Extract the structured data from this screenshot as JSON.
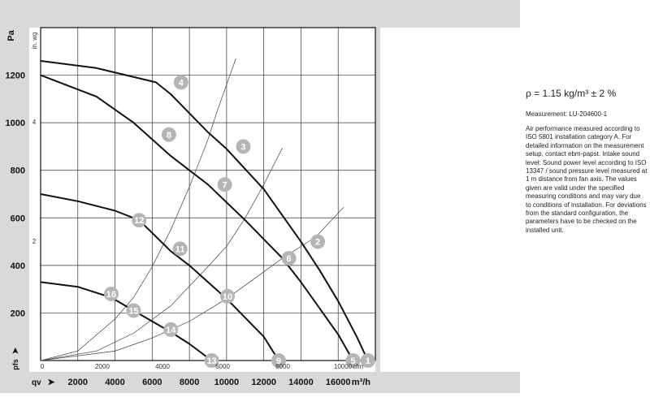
{
  "chart_data": {
    "type": "line",
    "ylabel": "Pa",
    "ylabel_secondary": "in. wg",
    "xlabel_primary": "m³/h",
    "xlabel_secondary": "cfm",
    "x_row_prefix": "qv",
    "y_row_prefix": "pfs",
    "ylim": [
      0,
      1400
    ],
    "xlim": [
      0,
      18000
    ],
    "y_ticks": [
      "200",
      "400",
      "600",
      "800",
      "1000",
      "1200"
    ],
    "y2_ticks": [
      "2",
      "4"
    ],
    "x_ticks_bottom": [
      "2000",
      "4000",
      "6000",
      "8000",
      "10000",
      "12000",
      "14000",
      "16000"
    ],
    "x_ticks_top": [
      "0",
      "2000",
      "4000",
      "6000",
      "8000",
      "10000"
    ],
    "grid": true,
    "curves": [
      {
        "points": [
          [
            0,
            1260
          ],
          [
            3000,
            1230
          ],
          [
            6200,
            1170
          ],
          [
            7000,
            1120
          ],
          [
            9000,
            960
          ],
          [
            10000,
            890
          ],
          [
            12000,
            720
          ],
          [
            14000,
            500
          ],
          [
            15000,
            380
          ],
          [
            16000,
            250
          ],
          [
            17000,
            100
          ],
          [
            17600,
            0
          ]
        ]
      },
      {
        "points": [
          [
            0,
            1200
          ],
          [
            3000,
            1110
          ],
          [
            5000,
            1000
          ],
          [
            7000,
            860
          ],
          [
            9000,
            740
          ],
          [
            11000,
            590
          ],
          [
            13000,
            430
          ],
          [
            14000,
            330
          ],
          [
            15000,
            220
          ],
          [
            16000,
            110
          ],
          [
            16800,
            0
          ]
        ]
      },
      {
        "points": [
          [
            0,
            700
          ],
          [
            2000,
            670
          ],
          [
            4000,
            630
          ],
          [
            5300,
            590
          ],
          [
            7000,
            460
          ],
          [
            8000,
            400
          ],
          [
            10000,
            260
          ],
          [
            11000,
            180
          ],
          [
            12000,
            100
          ],
          [
            12800,
            0
          ]
        ]
      },
      {
        "points": [
          [
            0,
            330
          ],
          [
            2000,
            310
          ],
          [
            3800,
            265
          ],
          [
            5000,
            210
          ],
          [
            6000,
            165
          ],
          [
            7000,
            120
          ],
          [
            8000,
            70
          ],
          [
            9200,
            0
          ]
        ]
      }
    ],
    "system_lines": [
      {
        "points": [
          [
            0,
            0
          ],
          [
            2000,
            40
          ],
          [
            4000,
            175
          ],
          [
            5000,
            265
          ],
          [
            6000,
            395
          ],
          [
            7000,
            550
          ],
          [
            8000,
            730
          ],
          [
            8500,
            830
          ],
          [
            9000,
            930
          ],
          [
            9500,
            1050
          ],
          [
            10000,
            1160
          ],
          [
            10500,
            1270
          ]
        ]
      },
      {
        "points": [
          [
            0,
            0
          ],
          [
            3000,
            40
          ],
          [
            5000,
            115
          ],
          [
            7000,
            230
          ],
          [
            9000,
            395
          ],
          [
            10000,
            480
          ],
          [
            11000,
            600
          ],
          [
            12000,
            740
          ],
          [
            13000,
            895
          ]
        ]
      },
      {
        "points": [
          [
            0,
            0
          ],
          [
            4000,
            40
          ],
          [
            6000,
            95
          ],
          [
            8000,
            165
          ],
          [
            10000,
            260
          ],
          [
            11500,
            345
          ],
          [
            13000,
            430
          ],
          [
            14800,
            520
          ],
          [
            16300,
            645
          ]
        ]
      }
    ],
    "points": [
      {
        "label": "1",
        "x": 17600,
        "y": 0
      },
      {
        "label": "2",
        "x": 14900,
        "y": 500
      },
      {
        "label": "3",
        "x": 10900,
        "y": 900
      },
      {
        "label": "4",
        "x": 7550,
        "y": 1170
      },
      {
        "label": "5",
        "x": 16800,
        "y": 0
      },
      {
        "label": "6",
        "x": 13350,
        "y": 430
      },
      {
        "label": "7",
        "x": 9900,
        "y": 740
      },
      {
        "label": "8",
        "x": 6900,
        "y": 950
      },
      {
        "label": "9",
        "x": 12800,
        "y": 0
      },
      {
        "label": "10",
        "x": 10050,
        "y": 270
      },
      {
        "label": "11",
        "x": 7500,
        "y": 470
      },
      {
        "label": "12",
        "x": 5300,
        "y": 590
      },
      {
        "label": "13",
        "x": 9200,
        "y": 0
      },
      {
        "label": "14",
        "x": 7000,
        "y": 130
      },
      {
        "label": "15",
        "x": 5000,
        "y": 210
      },
      {
        "label": "16",
        "x": 3800,
        "y": 280
      }
    ]
  },
  "info": {
    "density": "ρ = 1.15 kg/m³ ± 2 %",
    "measurement": "Measurement: LU-204600-1",
    "description": "Air performance measured according to ISO 5801 installation category A. For detailed information on the measurement setup, contact ebm-papst. Intake sound level: Sound power level according to ISO 13347 / sound pressure level measured at 1 m distance from fan axis. The values given are valid under the specified measuring conditions and may vary due to conditions of installation. For deviations from the standard configuration, the parameters have to be checked on the installed unit."
  },
  "colors": {
    "frame": "#d9d9d9",
    "grid": "#333333",
    "curve": "#111111",
    "marker": "#b5b5b5",
    "marker_text": "#ffffff"
  }
}
